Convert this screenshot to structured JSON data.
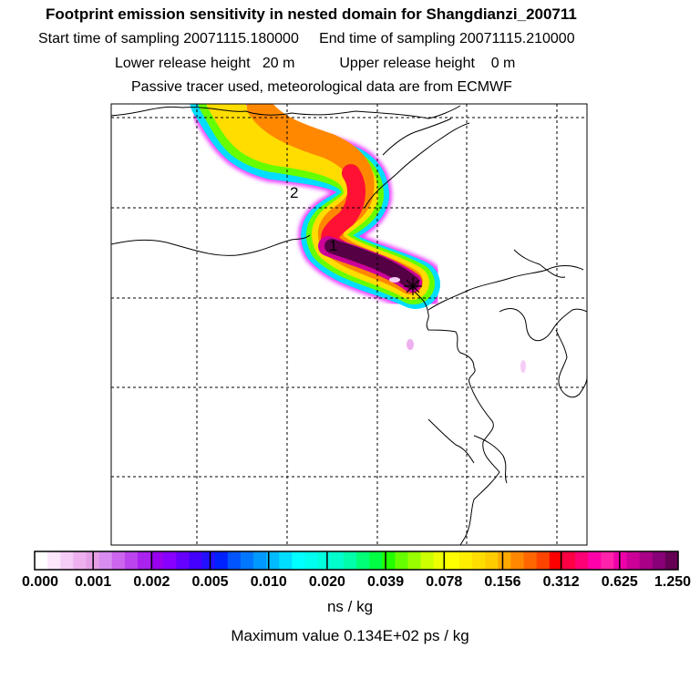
{
  "header": {
    "title": "Footprint emission sensitivity in nested domain for Shangdianzi_200711",
    "start_label": "Start time of sampling",
    "start_value": "20071115.180000",
    "end_label": "End time of sampling",
    "end_value": "20071115.210000",
    "lower_label": "Lower release height",
    "lower_value": "20 m",
    "upper_label": "Upper release height",
    "upper_value": "0 m",
    "tracer_note": "Passive tracer used, meteorological data are from ECMWF"
  },
  "map": {
    "labels": {
      "point1": "1",
      "point2": "2"
    }
  },
  "colorbar": {
    "ticks": [
      "0.000",
      "0.001",
      "0.002",
      "0.005",
      "0.010",
      "0.020",
      "0.039",
      "0.078",
      "0.156",
      "0.312",
      "0.625",
      "1.250"
    ],
    "colors": [
      "#ffffff",
      "#fbe6fb",
      "#f5ccf5",
      "#eeb0ee",
      "#e6a0e6",
      "#d98cf0",
      "#cc66ee",
      "#bb44ee",
      "#aa22ee",
      "#9900ee",
      "#8800ff",
      "#6600ff",
      "#4400ff",
      "#2211ff",
      "#0022ff",
      "#0055ff",
      "#0077ff",
      "#0099ff",
      "#00bbff",
      "#00ddff",
      "#00ffff",
      "#00ffee",
      "#00ffdd",
      "#00ffcc",
      "#00ffaa",
      "#00ff77",
      "#00ff44",
      "#22ff00",
      "#66ff00",
      "#99ff00",
      "#ccff00",
      "#eeff00",
      "#ffff00",
      "#ffee00",
      "#ffdd00",
      "#ffcc00",
      "#ffaa00",
      "#ff8800",
      "#ff6600",
      "#ff4400",
      "#ff0000",
      "#ff0044",
      "#ff0077",
      "#ff00aa",
      "#ff22aa",
      "#ee00aa",
      "#cc0099",
      "#aa0088",
      "#880077",
      "#660055"
    ],
    "units": "ns / kg",
    "max_label": "Maximum value",
    "max_value": "0.134E+02 ps / kg"
  }
}
